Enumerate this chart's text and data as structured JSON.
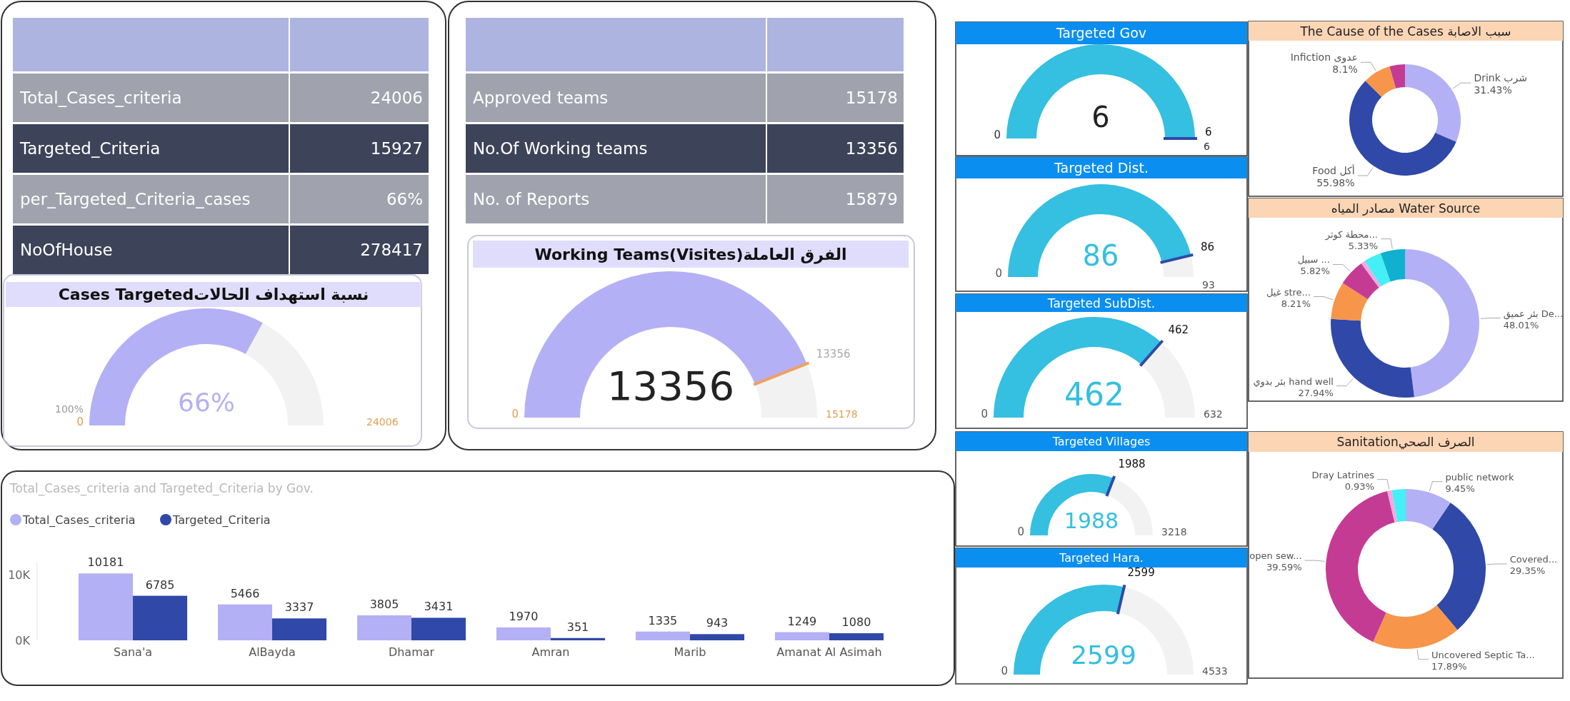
{
  "chart_data": [
    {
      "type": "other",
      "categories": [
        "Total_Cases_criteria",
        "Targeted_Criteria",
        "per_Targeted_Criteria_cases",
        "NoOfHouse"
      ],
      "value_labels": [
        "24006",
        "15927",
        "66%",
        "278417"
      ]
    },
    {
      "type": "donut",
      "title": "Cases Targetedنسبة استهداف الحالات",
      "categories": [
        null,
        null
      ],
      "values": [
        66,
        34
      ],
      "value_labels": [
        "66%",
        null
      ],
      "colors": [
        "#b4b0f5",
        "#f2f2f2"
      ],
      "annotations": [
        "0",
        "24006",
        "100%"
      ]
    },
    {
      "type": "other",
      "categories": [
        "Approved teams",
        "No.Of Working teams",
        "No. of Reports"
      ],
      "value_labels": [
        "15178",
        "13356",
        "15879"
      ]
    },
    {
      "type": "donut",
      "title": "Working Teams(Visites)الفرق العاملة",
      "categories": [
        null,
        null
      ],
      "values": [
        13356,
        1822
      ],
      "value_labels": [
        "13356",
        null
      ],
      "colors": [
        "#b4b0f5",
        "#f2f2f2"
      ],
      "annotations": [
        "0",
        "15178",
        "13356"
      ]
    },
    {
      "type": "bar",
      "title": "Total_Cases_criteria and Targeted_Criteria by Gov.",
      "categories": [
        "Sana'a",
        "AlBayda",
        "Dhamar",
        "Amran",
        "Marib",
        "Amanat Al Asimah"
      ],
      "series": [
        {
          "name": "Total_Cases_criteria",
          "color": "#b4b0f5",
          "values": [
            10181,
            5466,
            3805,
            1970,
            1335,
            1249
          ]
        },
        {
          "name": "Targeted_Criteria",
          "color": "#3048a8",
          "values": [
            6785,
            3337,
            3431,
            351,
            943,
            1080
          ]
        }
      ],
      "ylim": [
        0,
        12000
      ],
      "yticks": [
        {
          "value": 0,
          "label": "0K"
        },
        {
          "value": 10000,
          "label": "10K"
        }
      ],
      "data_labels": true,
      "legend": "top left"
    },
    {
      "type": "pie",
      "title": "Targeted Gov",
      "categories": [
        null
      ],
      "values": [
        6
      ],
      "value_labels": [
        "6"
      ],
      "colors": [
        "#35bfe0"
      ],
      "annotations": [
        "0",
        "6",
        "6"
      ]
    },
    {
      "type": "donut",
      "title": "Targeted Dist.",
      "categories": [
        null,
        null
      ],
      "values": [
        86,
        7
      ],
      "value_labels": [
        "86",
        null
      ],
      "colors": [
        "#35bfe0",
        "#f2f2f2"
      ],
      "annotations": [
        "0",
        "93",
        "86"
      ]
    },
    {
      "type": "donut",
      "title": "Targeted SubDist.",
      "categories": [
        null,
        null
      ],
      "values": [
        462,
        170
      ],
      "value_labels": [
        "462",
        null
      ],
      "colors": [
        "#35bfe0",
        "#f2f2f2"
      ],
      "annotations": [
        "0",
        "632",
        "462"
      ]
    },
    {
      "type": "donut",
      "title": "Targeted Villages",
      "categories": [
        null,
        null
      ],
      "values": [
        1988,
        1230
      ],
      "value_labels": [
        "1988",
        null
      ],
      "colors": [
        "#35bfe0",
        "#f2f2f2"
      ],
      "annotations": [
        "0",
        "3218",
        "1988"
      ]
    },
    {
      "type": "donut",
      "title": "Targeted Hara.",
      "categories": [
        null,
        null
      ],
      "values": [
        2599,
        1934
      ],
      "value_labels": [
        "2599",
        null
      ],
      "colors": [
        "#35bfe0",
        "#f2f2f2"
      ],
      "annotations": [
        "0",
        "4533",
        "2599"
      ]
    },
    {
      "type": "donut",
      "title": "The Cause of the Cases سبب الاصابة",
      "categories": [
        "Drink شرب",
        "Food أكل",
        "Infiction عدوى",
        null
      ],
      "values": [
        31.43,
        55.98,
        8.1,
        4.49
      ],
      "value_labels": [
        "31.43%",
        "55.98%",
        "8.1%",
        null
      ],
      "colors": [
        "#b4b0f5",
        "#3048a8",
        "#f7964a",
        "#c43b94"
      ]
    },
    {
      "type": "donut",
      "title": "مصادر المياه Water Source",
      "categories": [
        "بئر عميق De...",
        "بئر بدوي hand well",
        "غيل stre...",
        "سبيل ...",
        null,
        null,
        "محطة كوثر..."
      ],
      "values": [
        48.01,
        27.94,
        8.21,
        5.82,
        0.9,
        3.79,
        5.33
      ],
      "value_labels": [
        "48.01%",
        "27.94%",
        "8.21%",
        "5.82%",
        null,
        null,
        "5.33%"
      ],
      "colors": [
        "#b4b0f5",
        "#3048a8",
        "#f7964a",
        "#c43b94",
        "#f5a8e0",
        "#44f0f5",
        "#10b0d0"
      ]
    },
    {
      "type": "donut",
      "title": "Sanitationالصرف الصحي",
      "categories": [
        "public network",
        "Covered...",
        "Uncovered Septic Ta...",
        "open sew...",
        "Dray Latrines",
        null
      ],
      "values": [
        9.45,
        29.35,
        17.89,
        39.59,
        0.93,
        2.79
      ],
      "value_labels": [
        "9.45%",
        "29.35%",
        "17.89%",
        "39.59%",
        "0.93%",
        null
      ],
      "colors": [
        "#b4b0f5",
        "#3048a8",
        "#f7964a",
        "#c43b94",
        "#f5a8e0",
        "#44f0f5"
      ]
    }
  ]
}
